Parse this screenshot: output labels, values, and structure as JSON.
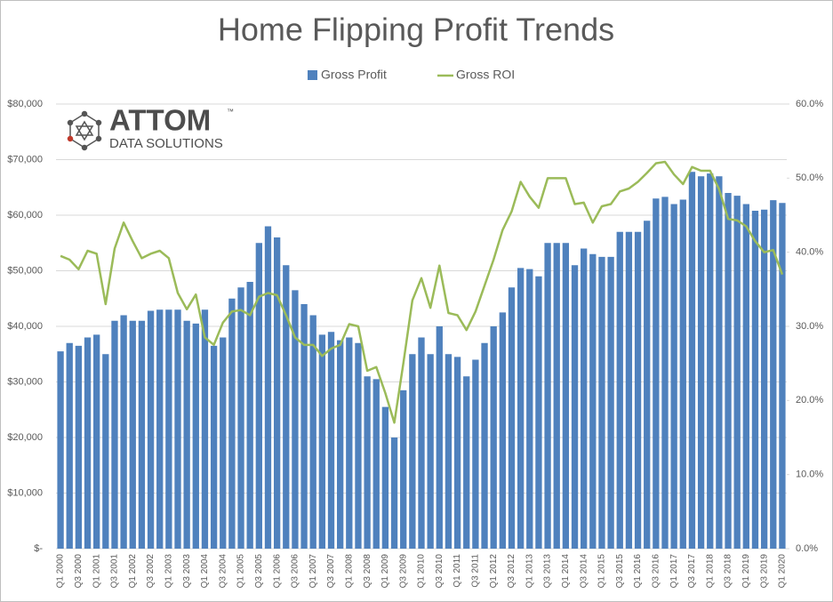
{
  "chart_data": {
    "type": "bar_line",
    "title": "Home Flipping  Profit Trends",
    "logo": {
      "name": "ATTOM",
      "mark": "™",
      "tagline": "DATA SOLUTIONS"
    },
    "categories": [
      "Q1 2000",
      null,
      "Q3 2000",
      null,
      "Q1 2001",
      null,
      "Q3 2001",
      null,
      "Q1 2002",
      null,
      "Q3 2002",
      null,
      "Q1 2003",
      null,
      "Q3 2003",
      null,
      "Q1 2004",
      null,
      "Q3 2004",
      null,
      "Q1 2005",
      null,
      "Q3 2005",
      null,
      "Q1 2006",
      null,
      "Q3 2006",
      null,
      "Q1 2007",
      null,
      "Q3 2007",
      null,
      "Q1 2008",
      null,
      "Q3 2008",
      null,
      "Q1 2009",
      null,
      "Q3 2009",
      null,
      "Q1 2010",
      null,
      "Q3 2010",
      null,
      "Q1 2011",
      null,
      "Q3 2011",
      null,
      "Q1 2012",
      null,
      "Q3 2012",
      null,
      "Q1 2013",
      null,
      "Q3 2013",
      null,
      "Q1 2014",
      null,
      "Q3 2014",
      null,
      "Q1 2015",
      null,
      "Q3 2015",
      null,
      "Q1 2016",
      null,
      "Q3 2016",
      null,
      "Q1 2017",
      null,
      "Q3 2017",
      null,
      "Q1 2018",
      null,
      "Q3 2018",
      null,
      "Q1 2019",
      null,
      "Q3 2019",
      null,
      "Q1 2020"
    ],
    "series": [
      {
        "name": "Gross Profit",
        "color": "#4f81bd",
        "kind": "bar",
        "values": [
          35500,
          37000,
          36500,
          38000,
          38500,
          35000,
          41000,
          42000,
          41000,
          41000,
          42800,
          43000,
          43000,
          43000,
          41000,
          40500,
          43000,
          36500,
          38000,
          45000,
          47000,
          48000,
          55000,
          58000,
          56000,
          51000,
          46500,
          44000,
          42000,
          38500,
          39000,
          37500,
          38000,
          37000,
          31000,
          30500,
          25500,
          20000,
          28500,
          35000,
          38000,
          35000,
          40000,
          35000,
          34500,
          31000,
          34000,
          37000,
          40000,
          42500,
          47000,
          50500,
          50300,
          49000,
          55000,
          55000,
          55000,
          51000,
          54000,
          53000,
          52500,
          52500,
          57000,
          57000,
          57000,
          59000,
          63000,
          63300,
          62000,
          62800,
          67800,
          67000,
          67500,
          67000,
          64000,
          63500,
          62000,
          60800,
          61000,
          62700,
          62200
        ]
      },
      {
        "name": "Gross ROI",
        "color": "#9bbb59",
        "kind": "line",
        "axis": "y2",
        "values": [
          39.5,
          39,
          37.7,
          40.2,
          39.8,
          33,
          40.5,
          44,
          41.5,
          39.2,
          39.8,
          40.2,
          39.2,
          34.5,
          32.3,
          34.3,
          28.5,
          27.5,
          30.5,
          32,
          32.2,
          31.5,
          34,
          34.5,
          34.2,
          31.5,
          28.5,
          27.5,
          27.5,
          26,
          27,
          27.5,
          30.3,
          30,
          24,
          24.5,
          21,
          17,
          25,
          33.5,
          36.5,
          32.5,
          38.2,
          31.8,
          31.5,
          29.5,
          32,
          35.5,
          39,
          43,
          45.5,
          49.5,
          47.5,
          46,
          50,
          50,
          50,
          46.5,
          46.7,
          44,
          46.2,
          46.5,
          48.2,
          48.6,
          49.5,
          50.7,
          52,
          52.2,
          50.5,
          49.2,
          51.5,
          51,
          51,
          48.5,
          44.5,
          44.3,
          43.5,
          41.5,
          40,
          40.3,
          37
        ]
      }
    ],
    "ylim": [
      0,
      80000
    ],
    "yticks": [
      {
        "value": 0,
        "label": "$-"
      },
      {
        "value": 10000,
        "label": "$10,000"
      },
      {
        "value": 20000,
        "label": "$20,000"
      },
      {
        "value": 30000,
        "label": "$30,000"
      },
      {
        "value": 40000,
        "label": "$40,000"
      },
      {
        "value": 50000,
        "label": "$50,000"
      },
      {
        "value": 60000,
        "label": "$60,000"
      },
      {
        "value": 70000,
        "label": "$70,000"
      },
      {
        "value": 80000,
        "label": "$80,000"
      }
    ],
    "y2lim": [
      0,
      60
    ],
    "y2ticks": [
      {
        "value": 0,
        "label": "0.0%"
      },
      {
        "value": 10,
        "label": "10.0%"
      },
      {
        "value": 20,
        "label": "20.0%"
      },
      {
        "value": 30,
        "label": "30.0%"
      },
      {
        "value": 40,
        "label": "40.0%"
      },
      {
        "value": 50,
        "label": "50.0%"
      },
      {
        "value": 60,
        "label": "60.0%"
      }
    ],
    "grid": true,
    "legend": "top"
  }
}
